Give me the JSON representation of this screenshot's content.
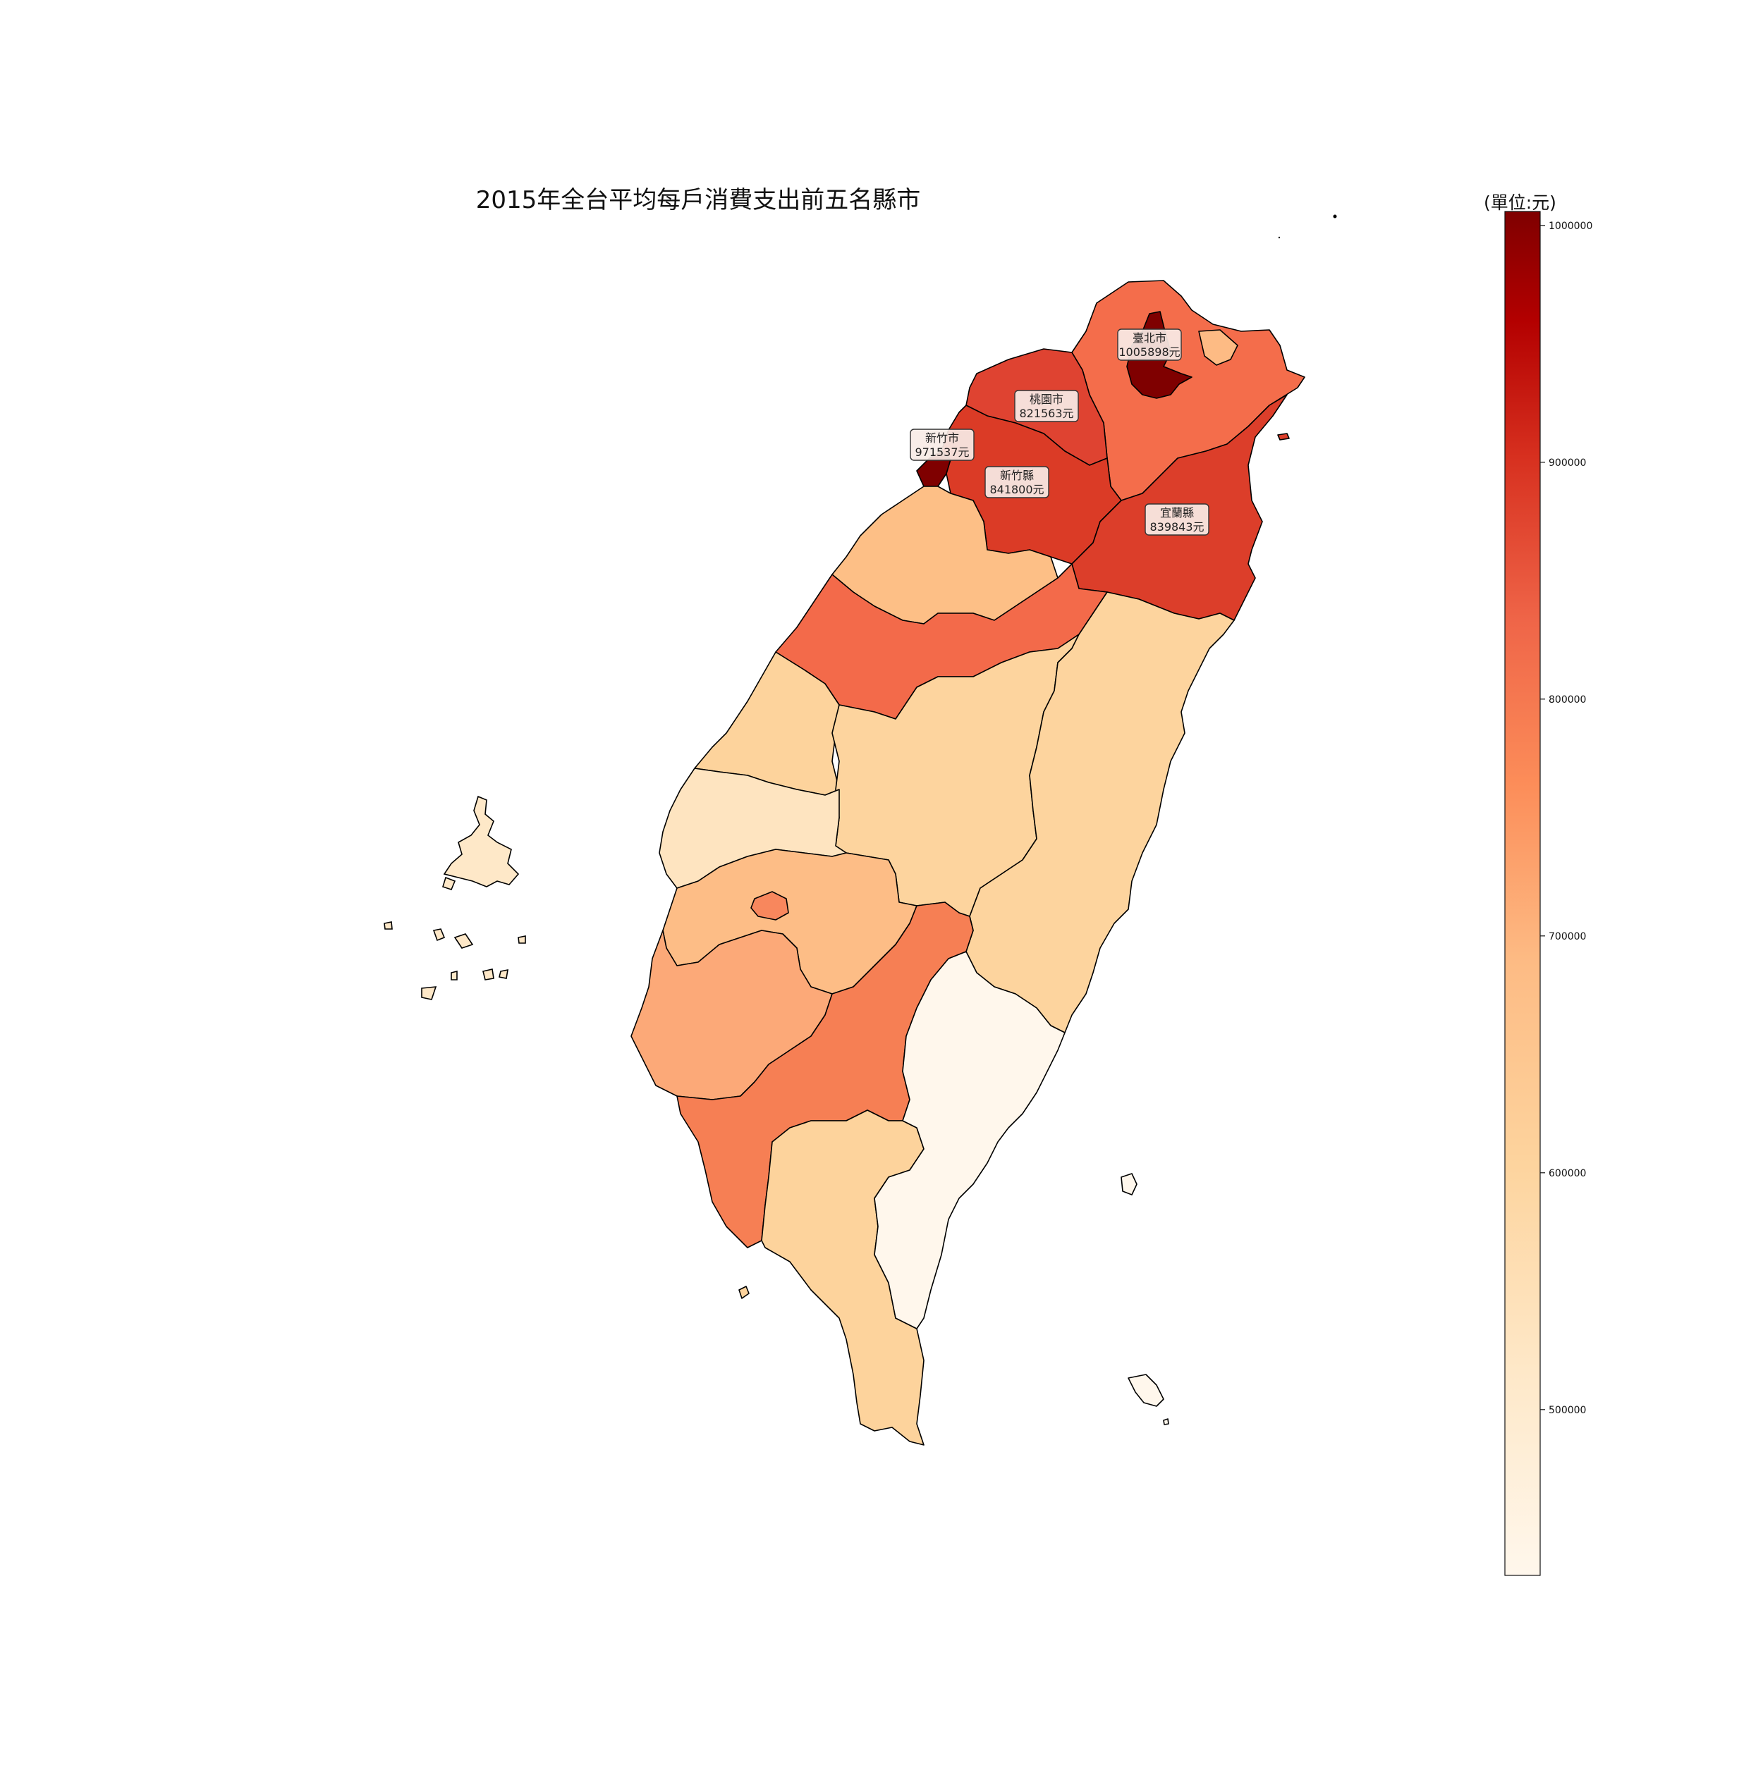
{
  "title": "2015年全台平均每戶消費支出前五名縣市",
  "colorbar": {
    "unit_label": "(單位:元)",
    "min": 430000,
    "max": 1005898,
    "ticks": [
      "500000",
      "600000",
      "700000",
      "800000",
      "900000",
      "1000000"
    ],
    "colormap": "OrRd"
  },
  "chart_data": {
    "type": "choropleth",
    "title": "2015年全台平均每戶消費支出前五名縣市",
    "value_unit": "元",
    "top5_labels": [
      {
        "region": "臺北市",
        "value": 1005898,
        "text": "臺北市",
        "value_text": "1005898元"
      },
      {
        "region": "桃園市",
        "value": 821563,
        "text": "桃園市",
        "value_text": "821563元"
      },
      {
        "region": "新竹市",
        "value": 971537,
        "text": "新竹市",
        "value_text": "971537元"
      },
      {
        "region": "新竹縣",
        "value": 841800,
        "text": "新竹縣",
        "value_text": "841800元"
      },
      {
        "region": "宜蘭縣",
        "value": 839843,
        "text": "宜蘭縣",
        "value_text": "839843元"
      }
    ]
  }
}
